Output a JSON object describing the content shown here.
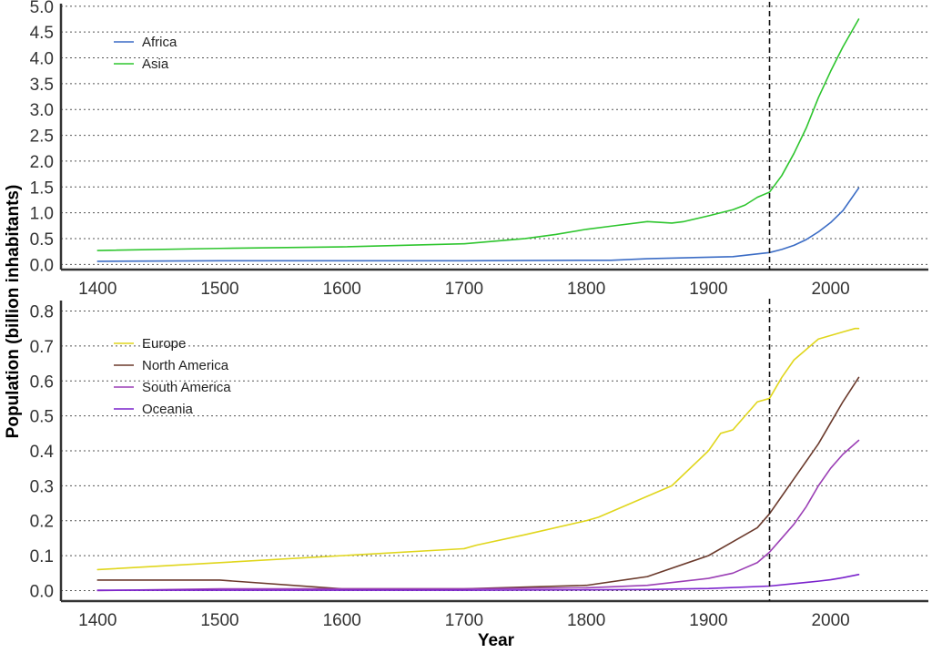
{
  "chart_data": [
    {
      "type": "line",
      "title": "",
      "xlabel": "",
      "ylabel": "",
      "xlim": [
        1370,
        2080
      ],
      "ylim": [
        -0.1,
        5.05
      ],
      "x_ticks": [
        "1400",
        "1500",
        "1600",
        "1700",
        "1800",
        "1900",
        "2000"
      ],
      "y_ticks": [
        "0.0",
        "0.5",
        "1.0",
        "1.5",
        "2.0",
        "2.5",
        "3.0",
        "3.5",
        "4.0",
        "4.5",
        "5.0"
      ],
      "grid": "horizontal dotted",
      "legend": "top-left",
      "reference_line_x": 1950,
      "series": [
        {
          "name": "Africa",
          "color": "#3b6cc5",
          "x": [
            1400,
            1500,
            1600,
            1700,
            1800,
            1820,
            1850,
            1900,
            1920,
            1950,
            1960,
            1970,
            1980,
            1990,
            2000,
            2010,
            2023
          ],
          "y": [
            0.06,
            0.07,
            0.07,
            0.07,
            0.08,
            0.08,
            0.11,
            0.14,
            0.15,
            0.23,
            0.29,
            0.37,
            0.48,
            0.63,
            0.81,
            1.04,
            1.48
          ]
        },
        {
          "name": "Asia",
          "color": "#2ec52e",
          "x": [
            1400,
            1500,
            1600,
            1700,
            1750,
            1775,
            1800,
            1820,
            1850,
            1870,
            1880,
            1900,
            1920,
            1930,
            1940,
            1950,
            1960,
            1970,
            1980,
            1990,
            2000,
            2010,
            2023
          ],
          "y": [
            0.27,
            0.31,
            0.34,
            0.4,
            0.5,
            0.58,
            0.68,
            0.74,
            0.83,
            0.8,
            0.83,
            0.94,
            1.06,
            1.15,
            1.3,
            1.4,
            1.72,
            2.15,
            2.64,
            3.23,
            3.74,
            4.21,
            4.75
          ]
        }
      ]
    },
    {
      "type": "line",
      "title": "",
      "xlabel": "Year",
      "ylabel": "",
      "xlim": [
        1370,
        2080
      ],
      "ylim": [
        -0.03,
        0.83
      ],
      "x_ticks": [
        "1400",
        "1500",
        "1600",
        "1700",
        "1800",
        "1900",
        "2000"
      ],
      "y_ticks": [
        "0.0",
        "0.1",
        "0.2",
        "0.3",
        "0.4",
        "0.5",
        "0.6",
        "0.7",
        "0.8"
      ],
      "grid": "horizontal dotted",
      "legend": "top-left",
      "reference_line_x": 1950,
      "series": [
        {
          "name": "Europe",
          "color": "#e0d61c",
          "x": [
            1400,
            1500,
            1600,
            1700,
            1710,
            1750,
            1800,
            1810,
            1850,
            1870,
            1900,
            1910,
            1920,
            1930,
            1940,
            1950,
            1960,
            1970,
            1980,
            1990,
            2000,
            2010,
            2020,
            2023
          ],
          "y": [
            0.06,
            0.08,
            0.1,
            0.12,
            0.13,
            0.16,
            0.2,
            0.21,
            0.27,
            0.3,
            0.4,
            0.45,
            0.46,
            0.5,
            0.54,
            0.55,
            0.61,
            0.66,
            0.69,
            0.72,
            0.73,
            0.74,
            0.75,
            0.75
          ]
        },
        {
          "name": "North America",
          "color": "#6b3a2c",
          "x": [
            1400,
            1500,
            1600,
            1700,
            1800,
            1850,
            1900,
            1920,
            1940,
            1950,
            1960,
            1970,
            1980,
            1990,
            2000,
            2010,
            2023
          ],
          "y": [
            0.03,
            0.03,
            0.005,
            0.005,
            0.015,
            0.04,
            0.1,
            0.14,
            0.18,
            0.22,
            0.27,
            0.32,
            0.37,
            0.42,
            0.48,
            0.54,
            0.61
          ]
        },
        {
          "name": "South America",
          "color": "#9b3fb5",
          "x": [
            1400,
            1500,
            1600,
            1700,
            1800,
            1850,
            1900,
            1920,
            1940,
            1950,
            1960,
            1970,
            1980,
            1990,
            2000,
            2010,
            2023
          ],
          "y": [
            0.0,
            0.005,
            0.005,
            0.005,
            0.008,
            0.015,
            0.035,
            0.05,
            0.08,
            0.11,
            0.15,
            0.19,
            0.24,
            0.3,
            0.35,
            0.39,
            0.43
          ]
        },
        {
          "name": "Oceania",
          "color": "#7a22cc",
          "x": [
            1400,
            1500,
            1600,
            1700,
            1800,
            1850,
            1900,
            1950,
            1970,
            1990,
            2000,
            2010,
            2023
          ],
          "y": [
            0.001,
            0.001,
            0.001,
            0.001,
            0.002,
            0.003,
            0.006,
            0.013,
            0.02,
            0.027,
            0.031,
            0.037,
            0.046
          ]
        }
      ]
    }
  ],
  "shared_ylabel": "Population (billion inhabitants)"
}
